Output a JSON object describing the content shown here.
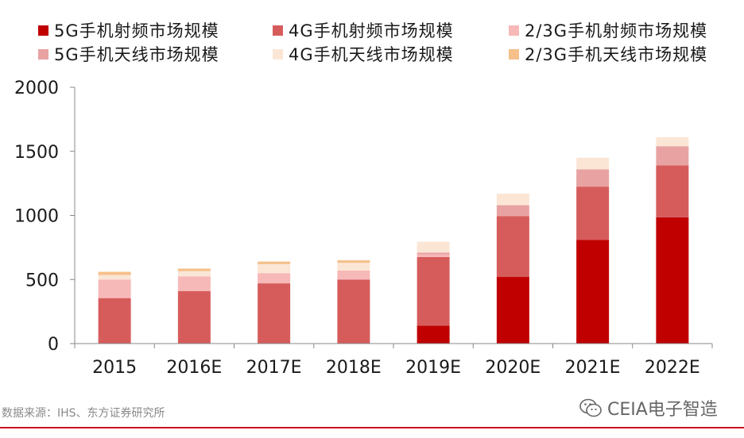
{
  "chart_data": {
    "type": "bar",
    "stacked": true,
    "categories": [
      "2015",
      "2016E",
      "2017E",
      "2018E",
      "2019E",
      "2020E",
      "2021E",
      "2022E"
    ],
    "series": [
      {
        "name": "5G手机射频市场规模",
        "color": "#c00000",
        "values": [
          0,
          0,
          0,
          0,
          140,
          520,
          810,
          985
        ]
      },
      {
        "name": "4G手机射频市场规模",
        "color": "#d65c5c",
        "values": [
          355,
          410,
          470,
          500,
          535,
          475,
          415,
          405
        ]
      },
      {
        "name": "2/3G手机射频市场规模",
        "color": "#f7b8b8",
        "values": [
          145,
          115,
          80,
          70,
          20,
          0,
          0,
          0
        ]
      },
      {
        "name": "5G手机天线市场规模",
        "color": "#e8a2a2",
        "values": [
          0,
          0,
          0,
          0,
          15,
          85,
          135,
          150
        ]
      },
      {
        "name": "4G手机天线市场规模",
        "color": "#fbe6d6",
        "values": [
          35,
          40,
          70,
          60,
          85,
          90,
          90,
          70
        ]
      },
      {
        "name": "2/3G手机天线市场规模",
        "color": "#f5c08a",
        "values": [
          25,
          20,
          20,
          20,
          0,
          0,
          0,
          0
        ]
      }
    ],
    "ylim": [
      0,
      2000
    ],
    "yticks": [
      0,
      500,
      1000,
      1500,
      2000
    ],
    "legend_position": "top",
    "grid": false
  },
  "source_text": "数据来源：IHS、东方证券研究所",
  "brand": {
    "text": "CEIA电子智造",
    "icon": "wechat-bubble-icon"
  }
}
